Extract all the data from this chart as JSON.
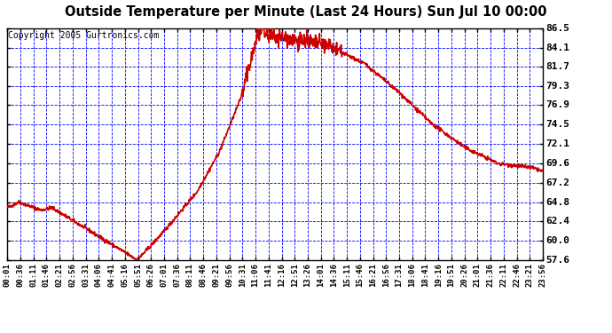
{
  "title": "Outside Temperature per Minute (Last 24 Hours) Sun Jul 10 00:00",
  "copyright": "Copyright 2005 Gurtronics.com",
  "y_ticks": [
    57.6,
    60.0,
    62.4,
    64.8,
    67.2,
    69.6,
    72.1,
    74.5,
    76.9,
    79.3,
    81.7,
    84.1,
    86.5
  ],
  "y_min": 57.6,
  "y_max": 86.5,
  "x_labels": [
    "00:01",
    "00:36",
    "01:11",
    "01:46",
    "02:21",
    "02:56",
    "03:31",
    "04:06",
    "04:41",
    "05:16",
    "05:51",
    "06:26",
    "07:01",
    "07:36",
    "08:11",
    "08:46",
    "09:21",
    "09:56",
    "10:31",
    "11:06",
    "11:41",
    "12:16",
    "12:51",
    "13:26",
    "14:01",
    "14:36",
    "15:11",
    "15:46",
    "16:21",
    "16:56",
    "17:31",
    "18:06",
    "18:41",
    "19:16",
    "19:51",
    "20:26",
    "21:01",
    "21:36",
    "22:11",
    "22:46",
    "23:21",
    "23:56"
  ],
  "background_color": "#ffffff",
  "plot_bg_color": "#ffffff",
  "grid_color": "#0000ff",
  "line_color": "#cc0000",
  "title_color": "#000000",
  "border_color": "#000000",
  "title_fontsize": 11,
  "copyright_fontsize": 7,
  "ylabel_fontsize": 8,
  "xlabel_fontsize": 7
}
